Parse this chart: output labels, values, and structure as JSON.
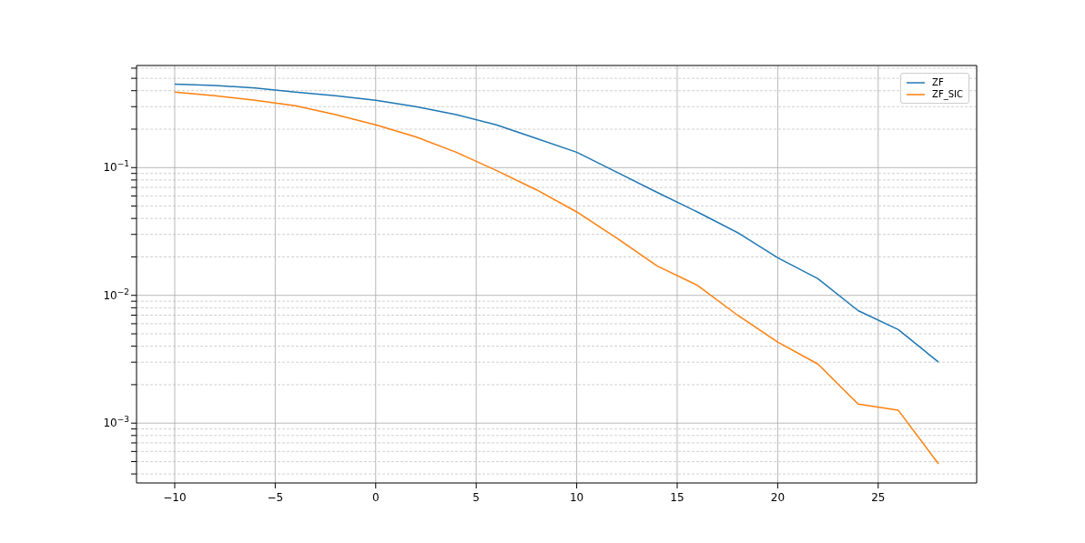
{
  "chart_data": {
    "type": "line",
    "x": [
      -10,
      -8,
      -6,
      -4,
      -2,
      0,
      2,
      4,
      6,
      8,
      10,
      12,
      14,
      16,
      18,
      20,
      22,
      24,
      26,
      28
    ],
    "series": [
      {
        "name": "ZF",
        "color": "#1f77b4",
        "values": [
          0.45,
          0.44,
          0.42,
          0.39,
          0.365,
          0.336,
          0.3,
          0.26,
          0.216,
          0.169,
          0.132,
          0.092,
          0.064,
          0.045,
          0.031,
          0.0197,
          0.0135,
          0.0076,
          0.0054,
          0.003
        ]
      },
      {
        "name": "ZF_SIC",
        "color": "#ff7f0e",
        "values": [
          0.39,
          0.365,
          0.336,
          0.305,
          0.26,
          0.216,
          0.174,
          0.132,
          0.095,
          0.067,
          0.045,
          0.028,
          0.017,
          0.012,
          0.007,
          0.0043,
          0.0029,
          0.00141,
          0.00126,
          0.00048
        ]
      }
    ],
    "xlim": [
      -11.9,
      29.9
    ],
    "xticks": [
      {
        "value": -10,
        "label": "−10"
      },
      {
        "value": -5,
        "label": "−5"
      },
      0,
      5,
      10,
      15,
      20,
      25
    ],
    "ylim": [
      0.00034,
      0.63
    ],
    "yticks": [
      {
        "value": 0.0004,
        "label": null
      },
      {
        "value": 0.0005,
        "label": null
      },
      {
        "value": 0.0006,
        "label": null
      },
      {
        "value": 0.0007,
        "label": null
      },
      {
        "value": 0.0008,
        "label": null
      },
      {
        "value": 0.0009,
        "label": null
      },
      {
        "value": 0.001,
        "label": "10$^{−3}$"
      },
      {
        "value": 0.002,
        "label": null
      },
      {
        "value": 0.003,
        "label": null
      },
      {
        "value": 0.004,
        "label": null
      },
      {
        "value": 0.005,
        "label": null
      },
      {
        "value": 0.006,
        "label": null
      },
      {
        "value": 0.007,
        "label": null
      },
      {
        "value": 0.008,
        "label": null
      },
      {
        "value": 0.009,
        "label": null
      },
      {
        "value": 0.01,
        "label": "10$^{−2}$"
      },
      {
        "value": 0.02,
        "label": null
      },
      {
        "value": 0.03,
        "label": null
      },
      {
        "value": 0.04,
        "label": null
      },
      {
        "value": 0.05,
        "label": null
      },
      {
        "value": 0.06,
        "label": null
      },
      {
        "value": 0.07,
        "label": null
      },
      {
        "value": 0.08,
        "label": null
      },
      {
        "value": 0.09,
        "label": null
      },
      {
        "value": 0.1,
        "label": "10$^{−1}$"
      },
      {
        "value": 0.2,
        "label": null
      },
      {
        "value": 0.3,
        "label": null
      },
      {
        "value": 0.4,
        "label": null
      },
      {
        "value": 0.5,
        "label": null
      },
      {
        "value": 0.6,
        "label": null
      }
    ],
    "log": "y",
    "grid": true,
    "legend": "top right",
    "marker": "none",
    "line_style": "solid"
  }
}
